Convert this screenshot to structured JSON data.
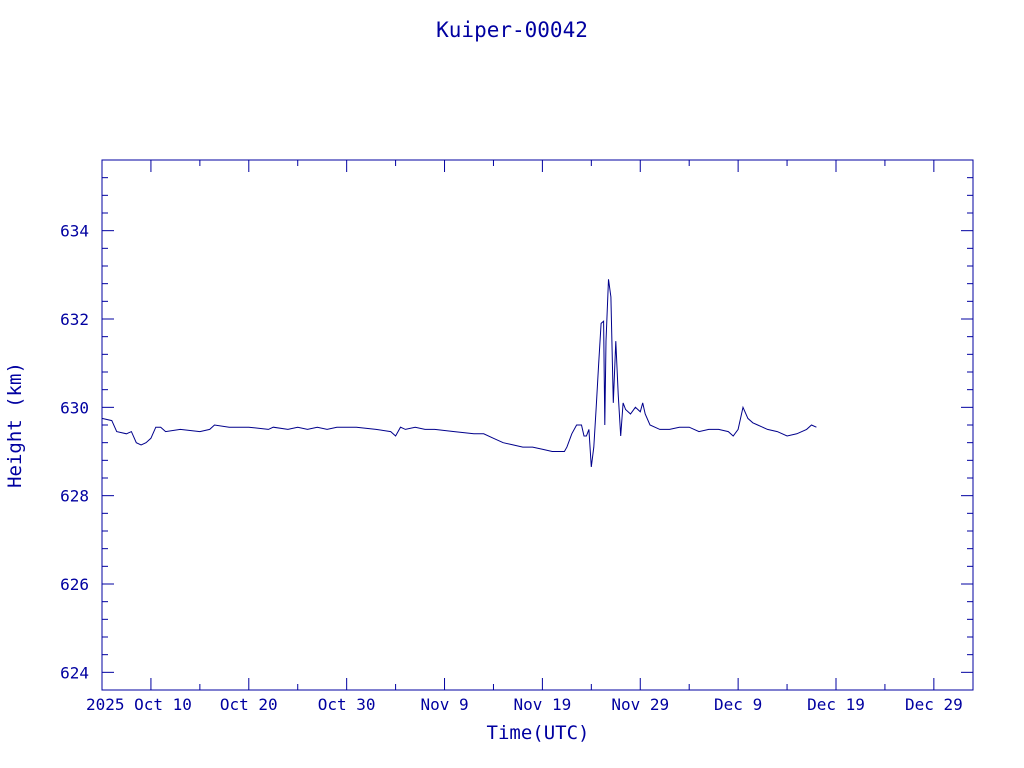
{
  "chart_data": {
    "type": "line",
    "title": "Kuiper-00042",
    "xlabel": "Time(UTC)",
    "ylabel": "Height (km)",
    "xlim": [
      "2025-10-05",
      "2026-01-02"
    ],
    "ylim": [
      623.6,
      635.6
    ],
    "x_ticks": [
      {
        "date": "2025-10-10",
        "label": "2025 Oct 10"
      },
      {
        "date": "2025-10-20",
        "label": "Oct 20"
      },
      {
        "date": "2025-10-30",
        "label": "Oct 30"
      },
      {
        "date": "2025-11-09",
        "label": "Nov  9"
      },
      {
        "date": "2025-11-19",
        "label": "Nov 19"
      },
      {
        "date": "2025-11-29",
        "label": "Nov 29"
      },
      {
        "date": "2025-12-09",
        "label": "Dec  9"
      },
      {
        "date": "2025-12-19",
        "label": "Dec 19"
      },
      {
        "date": "2025-12-29",
        "label": "Dec 29"
      }
    ],
    "y_ticks": [
      624,
      626,
      628,
      630,
      632,
      634
    ],
    "grid": false,
    "color": "#00008b",
    "axis_color": "#0000a0",
    "series": [
      {
        "points": [
          [
            "2025-10-05",
            629.75
          ],
          [
            "2025-10-06",
            629.7
          ],
          [
            "2025-10-06 12:00",
            629.45
          ],
          [
            "2025-10-07 12:00",
            629.4
          ],
          [
            "2025-10-08",
            629.45
          ],
          [
            "2025-10-08 12:00",
            629.2
          ],
          [
            "2025-10-09",
            629.15
          ],
          [
            "2025-10-09 12:00",
            629.2
          ],
          [
            "2025-10-10",
            629.3
          ],
          [
            "2025-10-10 12:00",
            629.55
          ],
          [
            "2025-10-11",
            629.55
          ],
          [
            "2025-10-11 12:00",
            629.45
          ],
          [
            "2025-10-13",
            629.5
          ],
          [
            "2025-10-15",
            629.45
          ],
          [
            "2025-10-16",
            629.5
          ],
          [
            "2025-10-16 12:00",
            629.6
          ],
          [
            "2025-10-18",
            629.55
          ],
          [
            "2025-10-20",
            629.55
          ],
          [
            "2025-10-22",
            629.5
          ],
          [
            "2025-10-22 12:00",
            629.55
          ],
          [
            "2025-10-24",
            629.5
          ],
          [
            "2025-10-25",
            629.55
          ],
          [
            "2025-10-26",
            629.5
          ],
          [
            "2025-10-27",
            629.55
          ],
          [
            "2025-10-28",
            629.5
          ],
          [
            "2025-10-29",
            629.55
          ],
          [
            "2025-10-31",
            629.55
          ],
          [
            "2025-11-02",
            629.5
          ],
          [
            "2025-11-03 12:00",
            629.45
          ],
          [
            "2025-11-04",
            629.35
          ],
          [
            "2025-11-04 12:00",
            629.55
          ],
          [
            "2025-11-05",
            629.5
          ],
          [
            "2025-11-06",
            629.55
          ],
          [
            "2025-11-07",
            629.5
          ],
          [
            "2025-11-08",
            629.5
          ],
          [
            "2025-11-10",
            629.45
          ],
          [
            "2025-11-12",
            629.4
          ],
          [
            "2025-11-13",
            629.4
          ],
          [
            "2025-11-14",
            629.3
          ],
          [
            "2025-11-15",
            629.2
          ],
          [
            "2025-11-16",
            629.15
          ],
          [
            "2025-11-17",
            629.1
          ],
          [
            "2025-11-18",
            629.1
          ],
          [
            "2025-11-19",
            629.05
          ],
          [
            "2025-11-20",
            629.0
          ],
          [
            "2025-11-21 06:00",
            629.0
          ],
          [
            "2025-11-21 12:00",
            629.1
          ],
          [
            "2025-11-22",
            629.4
          ],
          [
            "2025-11-22 12:00",
            629.6
          ],
          [
            "2025-11-23",
            629.6
          ],
          [
            "2025-11-23 06:00",
            629.35
          ],
          [
            "2025-11-23 12:00",
            629.35
          ],
          [
            "2025-11-23 18:00",
            629.5
          ],
          [
            "2025-11-24",
            628.65
          ],
          [
            "2025-11-24 06:00",
            629.1
          ],
          [
            "2025-11-24 12:00",
            630.0
          ],
          [
            "2025-11-24 18:00",
            631.0
          ],
          [
            "2025-11-25",
            631.9
          ],
          [
            "2025-11-25 06:00",
            631.95
          ],
          [
            "2025-11-25 09:00",
            629.6
          ],
          [
            "2025-11-25 12:00",
            631.5
          ],
          [
            "2025-11-25 18:00",
            632.9
          ],
          [
            "2025-11-26",
            632.5
          ],
          [
            "2025-11-26 06:00",
            630.1
          ],
          [
            "2025-11-26 12:00",
            631.5
          ],
          [
            "2025-11-26 18:00",
            630.3
          ],
          [
            "2025-11-27",
            629.35
          ],
          [
            "2025-11-27 06:00",
            630.1
          ],
          [
            "2025-11-27 12:00",
            629.95
          ],
          [
            "2025-11-28",
            629.85
          ],
          [
            "2025-11-28 12:00",
            630.0
          ],
          [
            "2025-11-29",
            629.9
          ],
          [
            "2025-11-29 06:00",
            630.1
          ],
          [
            "2025-11-29 12:00",
            629.85
          ],
          [
            "2025-11-30",
            629.6
          ],
          [
            "2025-11-30 12:00",
            629.55
          ],
          [
            "2025-12-01",
            629.5
          ],
          [
            "2025-12-02",
            629.5
          ],
          [
            "2025-12-03",
            629.55
          ],
          [
            "2025-12-04",
            629.55
          ],
          [
            "2025-12-05",
            629.45
          ],
          [
            "2025-12-06",
            629.5
          ],
          [
            "2025-12-07",
            629.5
          ],
          [
            "2025-12-08",
            629.45
          ],
          [
            "2025-12-08 12:00",
            629.35
          ],
          [
            "2025-12-09",
            629.5
          ],
          [
            "2025-12-09 12:00",
            630.0
          ],
          [
            "2025-12-10",
            629.75
          ],
          [
            "2025-12-10 12:00",
            629.65
          ],
          [
            "2025-12-11",
            629.6
          ],
          [
            "2025-12-12",
            629.5
          ],
          [
            "2025-12-13",
            629.45
          ],
          [
            "2025-12-14",
            629.35
          ],
          [
            "2025-12-15",
            629.4
          ],
          [
            "2025-12-16",
            629.5
          ],
          [
            "2025-12-16 12:00",
            629.6
          ],
          [
            "2025-12-17",
            629.55
          ]
        ]
      }
    ]
  }
}
